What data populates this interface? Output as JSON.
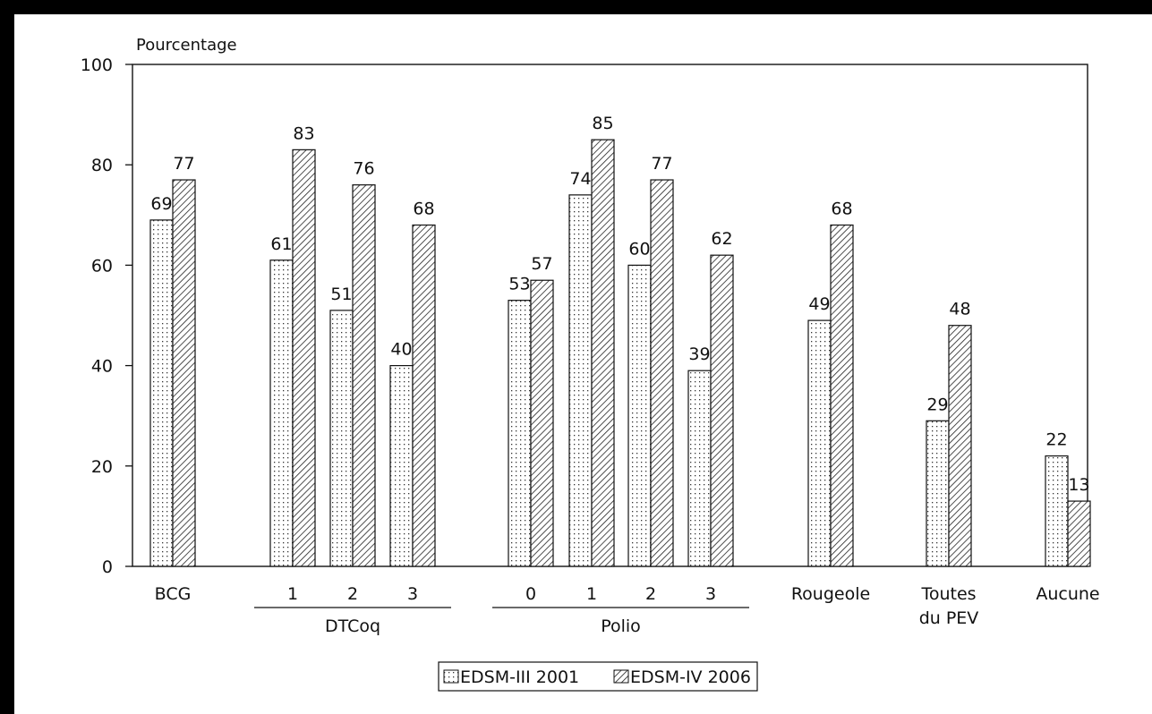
{
  "chart_data": {
    "type": "bar",
    "ylabel": "Pourcentage",
    "ylim": [
      0,
      100
    ],
    "yticks": [
      0,
      20,
      40,
      60,
      80,
      100
    ],
    "grid": false,
    "legend_position": "bottom",
    "categories": [
      "BCG",
      "1",
      "2",
      "3",
      "0",
      "1",
      "2",
      "3",
      "Rougeole",
      "Toutes du PEV",
      "Aucune"
    ],
    "category_lines": [
      [
        "BCG"
      ],
      [
        "1"
      ],
      [
        "2"
      ],
      [
        "3"
      ],
      [
        "0"
      ],
      [
        "1"
      ],
      [
        "2"
      ],
      [
        "3"
      ],
      [
        "Rougeole"
      ],
      [
        "Toutes",
        "du PEV"
      ],
      [
        "Aucune"
      ]
    ],
    "groups": [
      {
        "label": "DTCoq",
        "members": [
          1,
          2,
          3
        ]
      },
      {
        "label": "Polio",
        "members": [
          4,
          5,
          6,
          7
        ]
      }
    ],
    "series": [
      {
        "name": "EDSM-III 2001",
        "pattern": "dotted",
        "values": [
          69,
          61,
          51,
          40,
          53,
          74,
          60,
          39,
          49,
          29,
          22
        ]
      },
      {
        "name": "EDSM-IV 2006",
        "pattern": "hatched",
        "values": [
          77,
          83,
          76,
          68,
          57,
          85,
          77,
          62,
          68,
          48,
          13
        ]
      }
    ]
  }
}
